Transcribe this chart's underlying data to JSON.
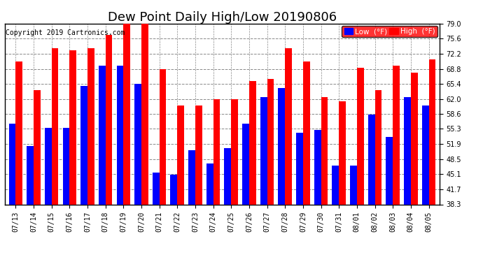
{
  "title": "Dew Point Daily High/Low 20190806",
  "copyright": "Copyright 2019 Cartronics.com",
  "dates": [
    "07/13",
    "07/14",
    "07/15",
    "07/16",
    "07/17",
    "07/18",
    "07/19",
    "07/20",
    "07/21",
    "07/22",
    "07/23",
    "07/24",
    "07/25",
    "07/26",
    "07/27",
    "07/28",
    "07/29",
    "07/30",
    "07/31",
    "08/01",
    "08/02",
    "08/03",
    "08/04",
    "08/05"
  ],
  "high": [
    70.5,
    64.0,
    73.5,
    73.0,
    73.5,
    76.5,
    79.0,
    79.0,
    68.8,
    60.5,
    60.5,
    62.0,
    62.0,
    66.0,
    66.5,
    73.5,
    70.5,
    62.5,
    61.5,
    69.0,
    64.0,
    69.5,
    68.0,
    71.0
  ],
  "low": [
    56.5,
    51.5,
    55.5,
    55.5,
    65.0,
    69.5,
    69.5,
    65.5,
    45.5,
    45.0,
    50.5,
    47.5,
    51.0,
    56.5,
    62.5,
    64.5,
    54.5,
    55.0,
    47.0,
    47.0,
    58.5,
    53.5,
    62.5,
    60.5
  ],
  "ylim_min": 38.3,
  "ylim_max": 79.0,
  "yticks": [
    38.3,
    41.7,
    45.1,
    48.5,
    51.9,
    55.3,
    58.6,
    62.0,
    65.4,
    68.8,
    72.2,
    75.6,
    79.0
  ],
  "bar_width": 0.38,
  "low_color": "#0000ff",
  "high_color": "#ff0000",
  "bg_color": "#ffffff",
  "grid_color": "#888888",
  "title_fontsize": 13,
  "tick_fontsize": 7,
  "copyright_fontsize": 7
}
